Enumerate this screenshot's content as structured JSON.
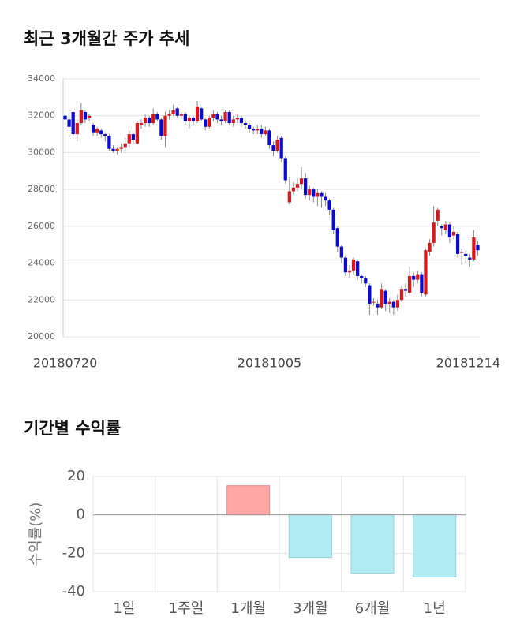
{
  "chart_data": [
    {
      "type": "candlestick",
      "title": "최근 3개월간 주가 추세",
      "categories": [
        "20180720",
        null,
        null,
        null,
        null,
        null,
        null,
        null,
        null,
        null,
        null,
        null,
        null,
        null,
        null,
        null,
        null,
        null,
        null,
        null,
        null,
        null,
        null,
        null,
        null,
        null,
        null,
        null,
        null,
        null,
        null,
        null,
        null,
        null,
        null,
        null,
        null,
        null,
        null,
        null,
        null,
        null,
        null,
        null,
        null,
        null,
        null,
        null,
        null,
        null,
        null,
        "20181005",
        null,
        null,
        null,
        null,
        null,
        null,
        null,
        null,
        null,
        null,
        null,
        null,
        null,
        null,
        null,
        null,
        null,
        null,
        null,
        null,
        null,
        null,
        null,
        null,
        null,
        null,
        null,
        null,
        null,
        null,
        null,
        null,
        null,
        null,
        null,
        null,
        null,
        null,
        null,
        null,
        null,
        null,
        null,
        null,
        null,
        null,
        null,
        null,
        null,
        null,
        null,
        "20181214"
      ],
      "open": [
        32000,
        31800,
        32200,
        31000,
        31600,
        32200,
        31900,
        31500,
        31100,
        31200,
        31000,
        30900,
        30200,
        30100,
        30200,
        30300,
        30500,
        31000,
        30500,
        31500,
        31600,
        31900,
        31600,
        32100,
        31800,
        30900,
        32000,
        32100,
        32400,
        32000,
        32100,
        31700,
        31900,
        31700,
        32400,
        31800,
        31400,
        31900,
        32100,
        31800,
        31700,
        32200,
        31600,
        31800,
        31900,
        31600,
        31500,
        31300,
        31200,
        31300,
        31000,
        31200,
        30400,
        30100,
        30800,
        29700,
        27300,
        27900,
        28100,
        28300,
        28600,
        27700,
        28000,
        27600,
        27800,
        27600,
        27400,
        26900,
        25900,
        24900,
        24300,
        23500,
        23600,
        24100,
        23300,
        23200,
        22800,
        21900,
        21800,
        21600,
        22500,
        21800,
        21900,
        21600,
        22000,
        22600,
        22400,
        23300,
        23100,
        23400,
        22300,
        24600,
        25100,
        26300,
        26000,
        25800,
        26100,
        25500,
        25600,
        24600,
        24500,
        24300,
        24200,
        25000
      ],
      "high": [
        32100,
        32000,
        32300,
        31800,
        32700,
        32300,
        32100,
        31600,
        31400,
        31300,
        31100,
        31000,
        30400,
        30300,
        30500,
        30800,
        31200,
        31100,
        31700,
        31800,
        32100,
        32000,
        32400,
        32200,
        31900,
        32200,
        32300,
        32600,
        32500,
        32200,
        32200,
        32000,
        32000,
        32800,
        32500,
        31900,
        32000,
        32300,
        32200,
        32000,
        32300,
        32300,
        32000,
        32100,
        32000,
        31700,
        31600,
        31400,
        31500,
        31500,
        31400,
        31300,
        30600,
        30900,
        30900,
        29800,
        28700,
        28400,
        28600,
        29200,
        28900,
        28200,
        28100,
        28000,
        27900,
        27800,
        27500,
        27000,
        26000,
        25000,
        24400,
        23900,
        24300,
        24200,
        23400,
        23300,
        22900,
        22100,
        22000,
        22900,
        22600,
        22100,
        22000,
        22300,
        22800,
        22900,
        23800,
        23500,
        23600,
        23500,
        24800,
        25300,
        27100,
        27000,
        26100,
        26300,
        26200,
        26000,
        25700,
        24800,
        24700,
        24500,
        25800,
        25200
      ],
      "low": [
        31700,
        31300,
        30900,
        30600,
        31500,
        31600,
        31700,
        30900,
        30900,
        30800,
        30600,
        30100,
        30000,
        29900,
        30000,
        30100,
        30300,
        30500,
        30400,
        31300,
        31400,
        31400,
        31500,
        31700,
        30700,
        30300,
        31800,
        32000,
        31900,
        31800,
        31500,
        31300,
        31500,
        31600,
        31700,
        31200,
        31300,
        31700,
        31600,
        31500,
        31600,
        31500,
        31400,
        31600,
        31400,
        31300,
        31100,
        31000,
        31000,
        30800,
        30900,
        30200,
        29800,
        30000,
        29500,
        28300,
        27200,
        27700,
        27900,
        28000,
        27500,
        27400,
        27300,
        27100,
        27000,
        27100,
        26600,
        25600,
        24600,
        24000,
        23300,
        23200,
        23400,
        23100,
        22900,
        22700,
        21200,
        21700,
        21200,
        21500,
        21400,
        21300,
        21200,
        21400,
        21900,
        22200,
        22300,
        22700,
        22900,
        22200,
        22200,
        24400,
        24900,
        26000,
        25500,
        25600,
        25100,
        25300,
        24300,
        23900,
        24000,
        23800,
        24100,
        24400
      ],
      "close": [
        31800,
        31400,
        31000,
        31600,
        32300,
        31800,
        32000,
        31100,
        31300,
        31000,
        30900,
        30200,
        30100,
        30200,
        30300,
        30500,
        31000,
        30700,
        31600,
        31600,
        31900,
        31600,
        32100,
        31800,
        30900,
        32000,
        32100,
        32300,
        32000,
        32100,
        31700,
        31900,
        31700,
        32500,
        31800,
        31400,
        31900,
        32100,
        31800,
        31700,
        32200,
        31600,
        31800,
        31900,
        31600,
        31500,
        31300,
        31200,
        31300,
        31000,
        31200,
        30400,
        30100,
        30700,
        29700,
        28500,
        27900,
        28100,
        28300,
        28600,
        27700,
        28000,
        27600,
        27800,
        27600,
        27400,
        26900,
        25800,
        24900,
        24300,
        23500,
        23600,
        24200,
        23300,
        23200,
        22900,
        21800,
        21900,
        21600,
        22600,
        21800,
        21900,
        21600,
        22000,
        22600,
        22500,
        23300,
        23100,
        23400,
        22400,
        24700,
        25100,
        26200,
        26900,
        25900,
        26100,
        25400,
        25700,
        24500,
        24600,
        24400,
        24200,
        25400,
        24700
      ],
      "up_color": "#d7191c",
      "down_color": "#0a0ad0",
      "ylim": [
        20000,
        34000
      ],
      "yticks": [
        20000,
        22000,
        24000,
        26000,
        28000,
        30000,
        32000,
        34000
      ],
      "grid": true
    },
    {
      "type": "bar",
      "title": "기간별 수익률",
      "y_label": "수익률(%)",
      "categories": [
        "1일",
        "1주일",
        "1개월",
        "3개월",
        "6개월",
        "1년"
      ],
      "values": [
        null,
        null,
        15.2,
        -22.2,
        -30.4,
        -32.4
      ],
      "positive_color": "#ffa6a6",
      "negative_color": "#b2ebf4",
      "ylim": [
        -40,
        20
      ],
      "yticks": [
        -40,
        -20,
        0,
        20
      ],
      "grid": true
    }
  ]
}
